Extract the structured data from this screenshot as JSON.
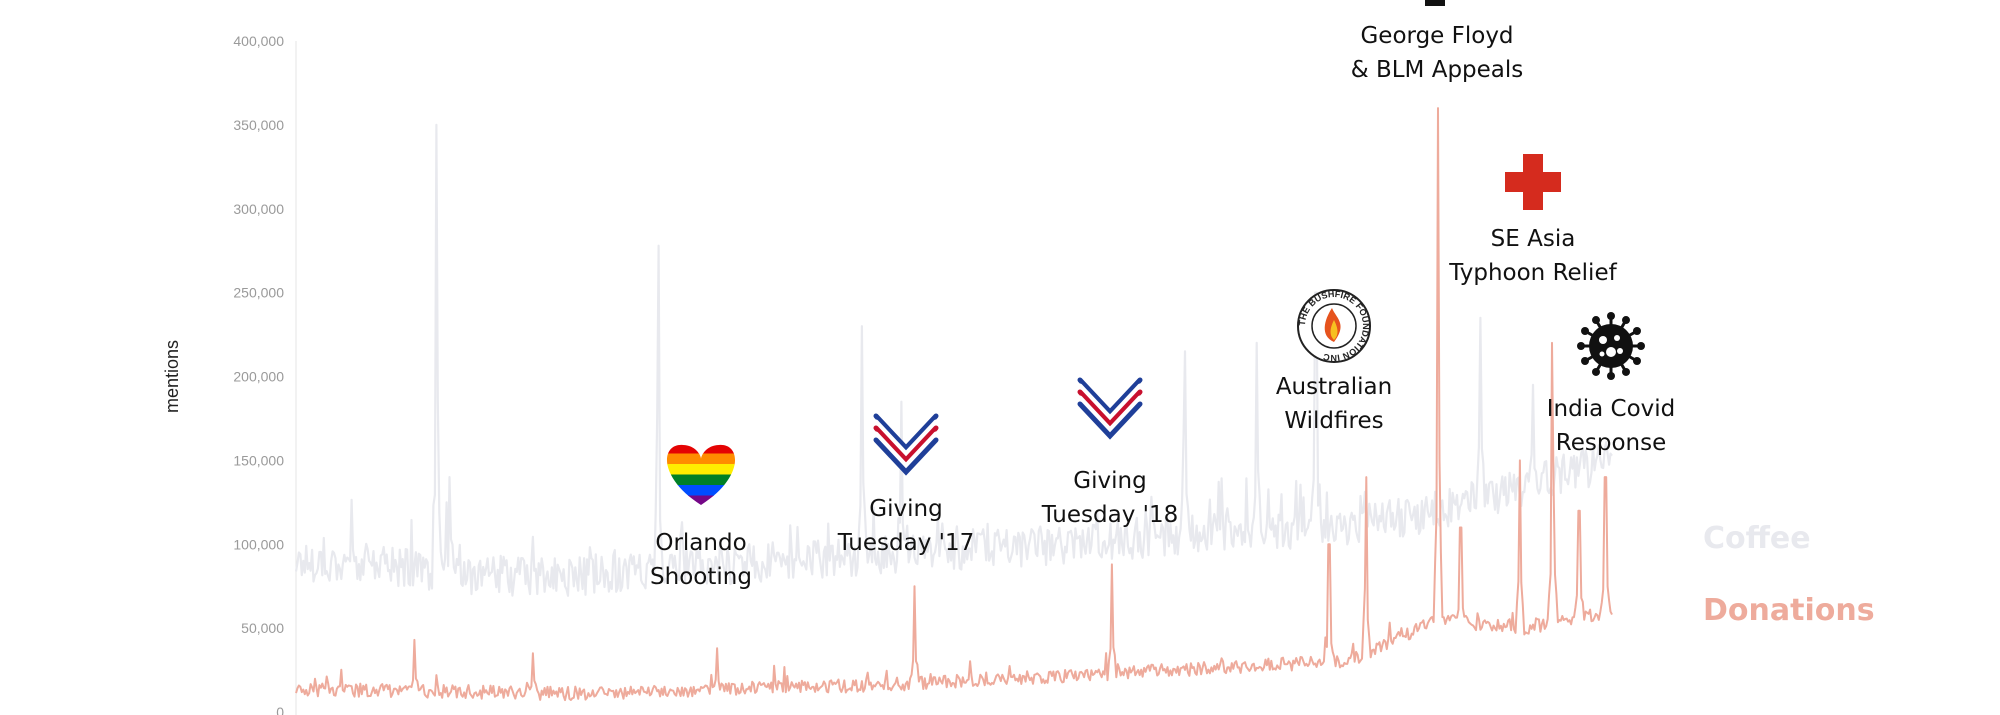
{
  "chart_data": {
    "type": "line",
    "title": "",
    "xlabel": "",
    "ylabel": "mentions",
    "ylim": [
      0,
      400000
    ],
    "yticks": [
      0,
      50000,
      100000,
      150000,
      200000,
      250000,
      300000,
      350000,
      400000
    ],
    "ytick_labels": [
      "0",
      "50,000",
      "100,000",
      "150,000",
      "200,000",
      "250,000",
      "300,000",
      "350,000",
      "400,000"
    ],
    "grid": false,
    "series": [
      {
        "name": "Coffee",
        "color": "#e8e9ee",
        "baseline": [
          90000,
          88000,
          82000,
          80000,
          85000,
          88000,
          92000,
          95000,
          98000,
          100000,
          105000,
          108000,
          110000,
          120000,
          135000,
          150000
        ],
        "noise": 12000,
        "spikes": [
          {
            "x": 0.107,
            "value": 350000
          },
          {
            "x": 0.117,
            "value": 140000
          },
          {
            "x": 0.275,
            "value": 278000
          },
          {
            "x": 0.43,
            "value": 230000
          },
          {
            "x": 0.46,
            "value": 185000
          },
          {
            "x": 0.675,
            "value": 215000
          },
          {
            "x": 0.73,
            "value": 220000
          },
          {
            "x": 0.775,
            "value": 250000
          },
          {
            "x": 0.9,
            "value": 235000
          },
          {
            "x": 0.94,
            "value": 195000
          }
        ]
      },
      {
        "name": "Donations",
        "color": "#eeab9c",
        "baseline": [
          13000,
          13000,
          12000,
          11000,
          12000,
          14000,
          15000,
          17000,
          20000,
          22000,
          25000,
          28000,
          30000,
          55000,
          50000,
          60000
        ],
        "noise": 4000,
        "spikes": [
          {
            "x": 0.09,
            "value": 43000
          },
          {
            "x": 0.18,
            "value": 35000
          },
          {
            "x": 0.32,
            "value": 38000
          },
          {
            "x": 0.47,
            "value": 75000
          },
          {
            "x": 0.62,
            "value": 88000
          },
          {
            "x": 0.785,
            "value": 100000
          },
          {
            "x": 0.813,
            "value": 140000
          },
          {
            "x": 0.84,
            "value": 50000
          },
          {
            "x": 0.868,
            "value": 360000
          },
          {
            "x": 0.885,
            "value": 110000
          },
          {
            "x": 0.93,
            "value": 150000
          },
          {
            "x": 0.955,
            "value": 220000
          },
          {
            "x": 0.975,
            "value": 120000
          },
          {
            "x": 0.995,
            "value": 140000
          }
        ]
      }
    ],
    "annotations": [
      {
        "label": [
          "Orlando",
          "Shooting"
        ],
        "icon": "rainbow-heart-icon",
        "x": 0.308
      },
      {
        "label": [
          "Giving",
          "Tuesday '17"
        ],
        "icon": "giving-tuesday-icon",
        "x": 0.465
      },
      {
        "label": [
          "Giving",
          "Tuesday '18"
        ],
        "icon": "giving-tuesday-icon",
        "x": 0.623
      },
      {
        "label": [
          "Australian",
          "Wildfires"
        ],
        "icon": "bushfire-foundation-icon",
        "x": 0.795
      },
      {
        "label": [
          "George Floyd",
          "& BLM Appeals"
        ],
        "icon": "raised-fist-icon",
        "x": 0.865
      },
      {
        "label": [
          "SE Asia",
          "Typhoon Relief"
        ],
        "icon": "red-cross-icon",
        "x": 0.945
      },
      {
        "label": [
          "India Covid",
          "Response"
        ],
        "icon": "virus-icon",
        "x": 1.0
      }
    ],
    "legend": [
      "Coffee",
      "Donations"
    ],
    "badge_text": "THE BUSHFIRE FOUNDATION INC"
  }
}
